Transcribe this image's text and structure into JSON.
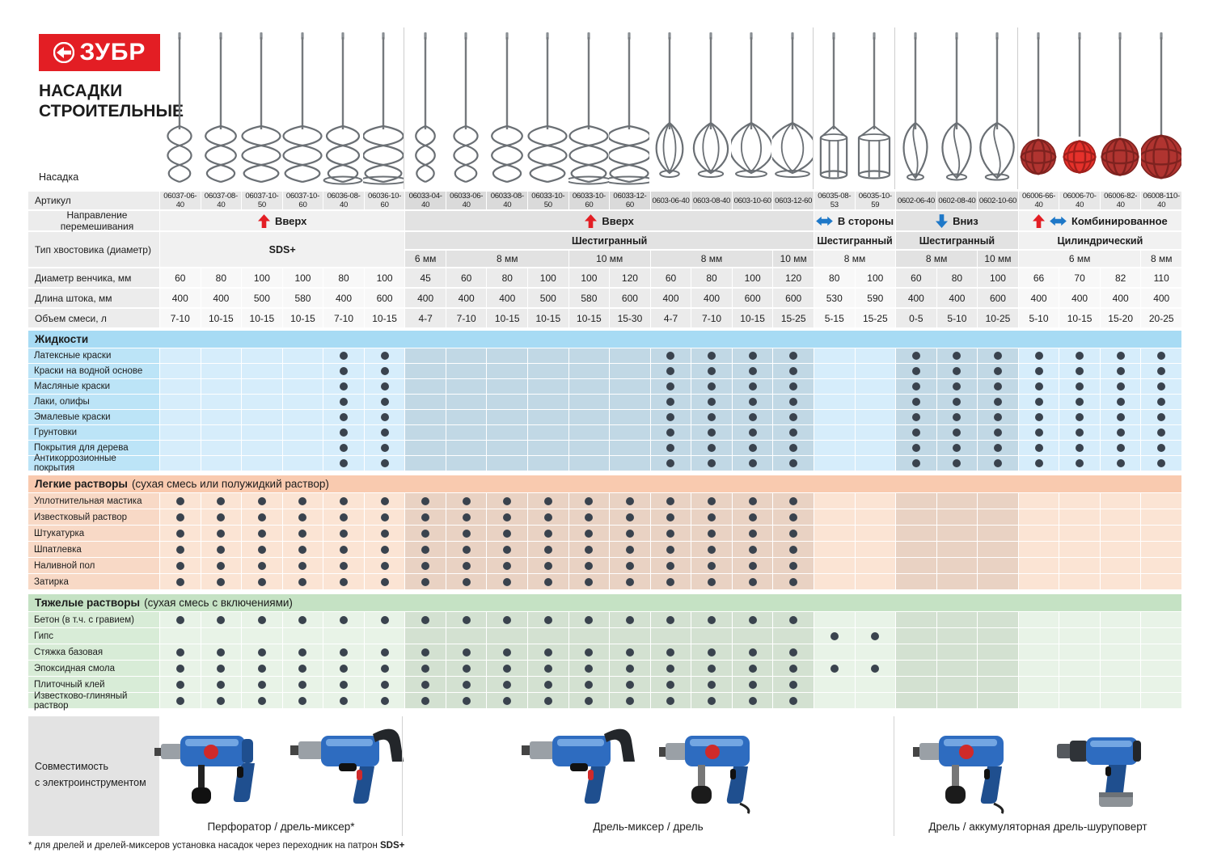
{
  "brand": {
    "logo_text": "ЗУБР",
    "title_line1": "НАСАДКИ",
    "title_line2": "СТРОИТЕЛЬНЫЕ"
  },
  "labels": {
    "nozzle": "Насадка",
    "article": "Артикул",
    "direction": "Направление перемешивания",
    "shank": "Тип хвостовика (диаметр)",
    "diameter": "Диаметр венчика, мм",
    "length": "Длина штока, мм",
    "volume": "Объем смеси, л"
  },
  "colors": {
    "brand_red": "#e31e24",
    "arrow_blue": "#1e78c8",
    "dot": "#3a434e"
  },
  "groups": [
    {
      "direction": "Вверх",
      "arrows": [
        "up"
      ],
      "shank": "SDS+",
      "full_shank": true,
      "shade": "light",
      "count": 6,
      "subs": []
    },
    {
      "direction": "Вверх",
      "arrows": [
        "up"
      ],
      "shank": "Шестигранный",
      "full_shank": false,
      "shade": "dark",
      "count": 10,
      "subs": [
        {
          "label": "6 мм",
          "span": 1
        },
        {
          "label": "8 мм",
          "span": 3
        },
        {
          "label": "10 мм",
          "span": 2
        },
        {
          "label": "8 мм",
          "span": 3
        },
        {
          "label": "10 мм",
          "span": 1
        }
      ]
    },
    {
      "direction": "В стороны",
      "arrows": [
        "lr"
      ],
      "shank": "Шестигранный",
      "full_shank": false,
      "shade": "light",
      "count": 2,
      "subs": [
        {
          "label": "8 мм",
          "span": 2
        }
      ]
    },
    {
      "direction": "Вниз",
      "arrows": [
        "down"
      ],
      "shank": "Шестигранный",
      "full_shank": false,
      "shade": "dark",
      "count": 3,
      "subs": [
        {
          "label": "8 мм",
          "span": 2
        },
        {
          "label": "10 мм",
          "span": 1
        }
      ]
    },
    {
      "direction": "Комбинированное",
      "arrows": [
        "up",
        "lr"
      ],
      "shank": "Цилиндрический",
      "full_shank": false,
      "shade": "light",
      "count": 4,
      "subs": [
        {
          "label": "6 мм",
          "span": 3
        },
        {
          "label": "8 мм",
          "span": 1
        }
      ]
    }
  ],
  "columns": [
    {
      "article": "06037-06-40",
      "diameter": "60",
      "length": "400",
      "volume": "7-10",
      "glyph": "spiral-icon",
      "scale": 0.62
    },
    {
      "article": "06037-08-40",
      "diameter": "80",
      "length": "400",
      "volume": "10-15",
      "glyph": "spiral-icon",
      "scale": 0.8
    },
    {
      "article": "06037-10-50",
      "diameter": "100",
      "length": "500",
      "volume": "10-15",
      "glyph": "spiral-icon",
      "scale": 1.0
    },
    {
      "article": "06037-10-60",
      "diameter": "100",
      "length": "580",
      "volume": "10-15",
      "glyph": "spiral-icon",
      "scale": 1.0
    },
    {
      "article": "06036-08-40",
      "diameter": "80",
      "length": "400",
      "volume": "7-10",
      "glyph": "spiral-ring-icon",
      "scale": 0.85
    },
    {
      "article": "06036-10-60",
      "diameter": "100",
      "length": "600",
      "volume": "10-15",
      "glyph": "spiral-ring-icon",
      "scale": 1.05
    },
    {
      "article": "06033-04-40",
      "diameter": "45",
      "length": "400",
      "volume": "4-7",
      "glyph": "spiral-icon",
      "scale": 0.5
    },
    {
      "article": "06033-06-40",
      "diameter": "60",
      "length": "400",
      "volume": "7-10",
      "glyph": "spiral-icon",
      "scale": 0.62
    },
    {
      "article": "06033-08-40",
      "diameter": "80",
      "length": "400",
      "volume": "10-15",
      "glyph": "spiral-icon",
      "scale": 0.8
    },
    {
      "article": "06033-10-50",
      "diameter": "100",
      "length": "500",
      "volume": "10-15",
      "glyph": "spiral-icon",
      "scale": 1.0
    },
    {
      "article": "06033-10-60",
      "diameter": "100",
      "length": "580",
      "volume": "10-15",
      "glyph": "spiral-ring-icon",
      "scale": 1.0
    },
    {
      "article": "06033-12-60",
      "diameter": "120",
      "length": "600",
      "volume": "15-30",
      "glyph": "spiral-ring-icon",
      "scale": 1.1
    },
    {
      "article": "0603-06-40",
      "diameter": "60",
      "length": "400",
      "volume": "4-7",
      "glyph": "whisk-icon",
      "scale": 0.62
    },
    {
      "article": "0603-08-40",
      "diameter": "80",
      "length": "400",
      "volume": "7-10",
      "glyph": "whisk-icon",
      "scale": 0.8
    },
    {
      "article": "0603-10-60",
      "diameter": "100",
      "length": "600",
      "volume": "10-15",
      "glyph": "whisk-icon",
      "scale": 1.0
    },
    {
      "article": "0603-12-60",
      "diameter": "120",
      "length": "600",
      "volume": "15-25",
      "glyph": "whisk-icon",
      "scale": 1.1
    },
    {
      "article": "06035-08-53",
      "diameter": "80",
      "length": "530",
      "volume": "5-15",
      "glyph": "cage-icon",
      "scale": 0.85
    },
    {
      "article": "06035-10-59",
      "diameter": "100",
      "length": "590",
      "volume": "15-25",
      "glyph": "cage-icon",
      "scale": 1.0
    },
    {
      "article": "0602-06-40",
      "diameter": "60",
      "length": "400",
      "volume": "0-5",
      "glyph": "taper-icon",
      "scale": 0.7
    },
    {
      "article": "0602-08-40",
      "diameter": "80",
      "length": "400",
      "volume": "5-10",
      "glyph": "taper-icon",
      "scale": 0.85
    },
    {
      "article": "0602-10-60",
      "diameter": "100",
      "length": "600",
      "volume": "10-25",
      "glyph": "taper-icon",
      "scale": 1.0
    },
    {
      "article": "06006-66-40",
      "diameter": "66",
      "length": "400",
      "volume": "5-10",
      "glyph": "ball-icon",
      "scale": 0.85
    },
    {
      "article": "06006-70-40",
      "diameter": "70",
      "length": "400",
      "volume": "10-15",
      "glyph": "ball-bright-icon",
      "scale": 0.78
    },
    {
      "article": "06006-82-40",
      "diameter": "82",
      "length": "400",
      "volume": "15-20",
      "glyph": "ball-icon",
      "scale": 0.9
    },
    {
      "article": "06008-110-40",
      "diameter": "110",
      "length": "400",
      "volume": "20-25",
      "glyph": "ball-icon",
      "scale": 1.05
    }
  ],
  "sections": [
    {
      "title": "Жидкости",
      "subtitle": "",
      "theme": "t-blue",
      "rows": [
        {
          "label": "Латексные краски",
          "dots": "0000110000001111001111111"
        },
        {
          "label": "Краски на водной основе",
          "dots": "0000110000001111001111111"
        },
        {
          "label": "Масляные краски",
          "dots": "0000110000001111001111111"
        },
        {
          "label": "Лаки, олифы",
          "dots": "0000110000001111001111111"
        },
        {
          "label": "Эмалевые краски",
          "dots": "0000110000001111001111111"
        },
        {
          "label": "Грунтовки",
          "dots": "0000110000001111001111111"
        },
        {
          "label": "Покрытия для дерева",
          "dots": "0000110000001111001111111"
        },
        {
          "label": "Антикоррозионные покрытия",
          "dots": "0000110000001111001111111"
        }
      ]
    },
    {
      "title": "Легкие растворы",
      "subtitle": "(сухая смесь или полужидкий раствор)",
      "theme": "t-peach",
      "rows": [
        {
          "label": "Уплотнительная мастика",
          "dots": "1111111111111111000000000"
        },
        {
          "label": "Известковый раствор",
          "dots": "1111111111111111000000000"
        },
        {
          "label": "Штукатурка",
          "dots": "1111111111111111000000000"
        },
        {
          "label": "Шпатлевка",
          "dots": "1111111111111111000000000"
        },
        {
          "label": "Наливной пол",
          "dots": "1111111111111111000000000"
        },
        {
          "label": "Затирка",
          "dots": "1111111111111111000000000"
        }
      ]
    },
    {
      "title": "Тяжелые растворы",
      "subtitle": "(сухая смесь с включениями)",
      "theme": "t-green",
      "rows": [
        {
          "label": "Бетон (в т.ч. с гравием)",
          "dots": "1111111111111111000000000"
        },
        {
          "label": "Гипс",
          "dots": "0000000000000000110000000"
        },
        {
          "label": "Стяжка базовая",
          "dots": "1111111111111111000000000"
        },
        {
          "label": "Эпоксидная смола",
          "dots": "1111111111111111110000000"
        },
        {
          "label": "Плиточный клей",
          "dots": "1111111111111111000000000"
        },
        {
          "label": "Известково-глиняный раствор",
          "dots": "1111111111111111000000000"
        }
      ]
    }
  ],
  "compat": {
    "label_line1": "Совместимость",
    "label_line2": "с электроинструментом",
    "zones": [
      {
        "caption": "Перфоратор / дрель-миксер*",
        "tools": [
          "perforator-image",
          "mixer-drill-image"
        ]
      },
      {
        "caption": "Дрель-миксер / дрель",
        "tools": [
          "mixer-drill-image",
          "drill-image"
        ]
      },
      {
        "caption": "Дрель / аккумуляторная дрель-шуруповерт",
        "tools": [
          "drill-image",
          "cordless-driver-image"
        ]
      }
    ]
  },
  "footnote": {
    "text": "* для дрелей и дрелей-миксеров установка насадок через переходник на патрон ",
    "bold": "SDS+"
  }
}
